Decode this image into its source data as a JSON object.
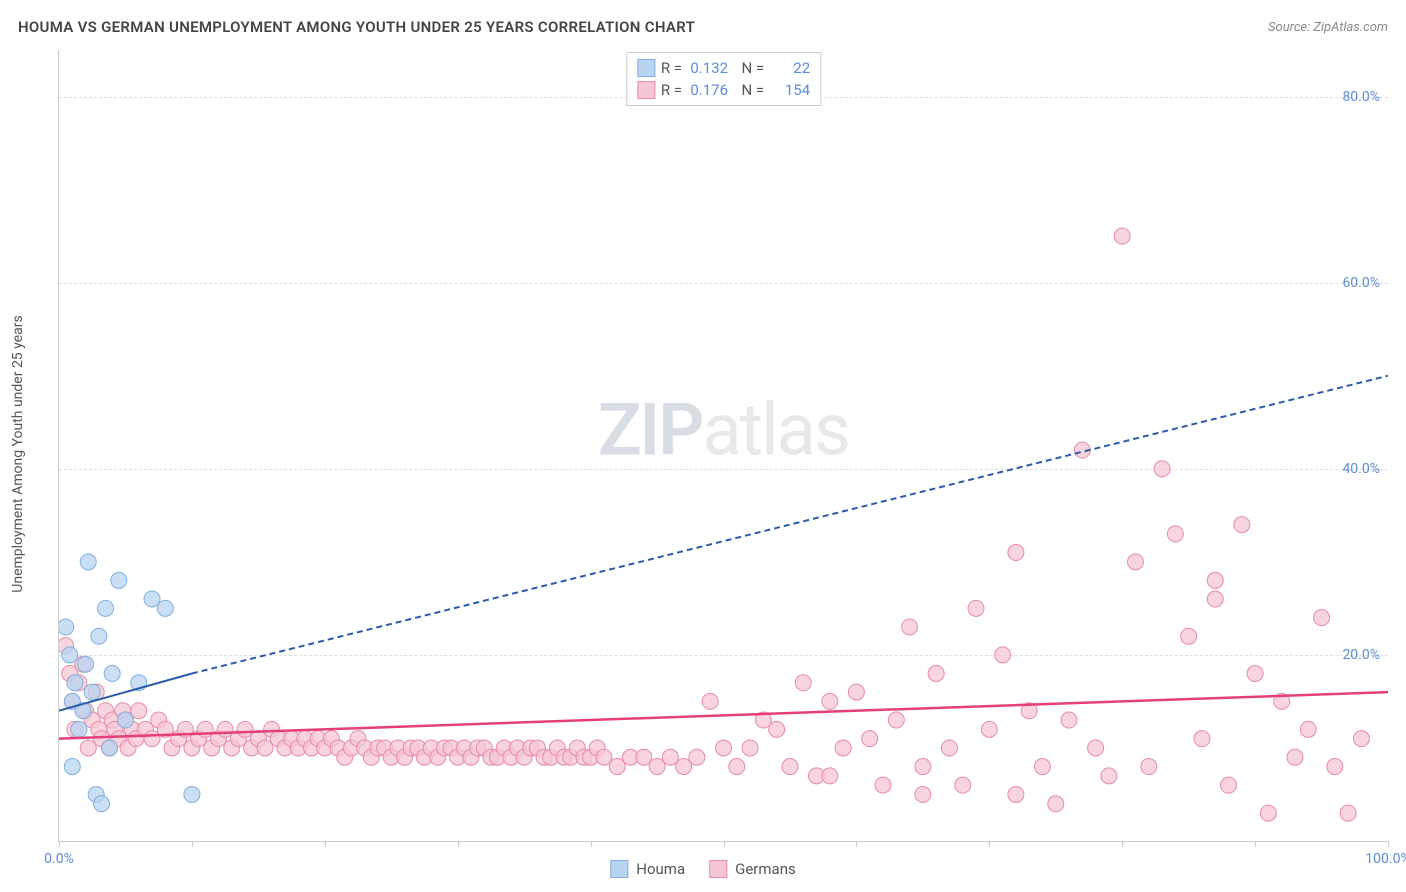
{
  "title": "HOUMA VS GERMAN UNEMPLOYMENT AMONG YOUTH UNDER 25 YEARS CORRELATION CHART",
  "source": "Source: ZipAtlas.com",
  "ylabel": "Unemployment Among Youth under 25 years",
  "watermark_zip": "ZIP",
  "watermark_atlas": "atlas",
  "chart": {
    "type": "scatter",
    "xlim": [
      0,
      100
    ],
    "ylim": [
      0,
      85
    ],
    "xtick_positions": [
      0,
      10,
      20,
      30,
      40,
      50,
      60,
      70,
      80,
      90,
      100
    ],
    "xtick_labels": {
      "0": "0.0%",
      "100": "100.0%"
    },
    "ytick_positions": [
      20,
      40,
      60,
      80
    ],
    "ytick_labels": [
      "20.0%",
      "40.0%",
      "60.0%",
      "80.0%"
    ],
    "grid_color": "#e0e0e0",
    "axis_color": "#cccccc",
    "background_color": "#ffffff",
    "tick_label_color": "#5b8dd6",
    "series": [
      {
        "name": "Houma",
        "color_fill": "#b8d4f0",
        "color_stroke": "#7fb0e0",
        "marker_radius": 8,
        "marker_opacity": 0.75,
        "r_value": "0.132",
        "n_value": "22",
        "trend": {
          "type": "dashed_then_solid",
          "solid_x": [
            0,
            10
          ],
          "solid_y": [
            14,
            18
          ],
          "dashed_x": [
            10,
            100
          ],
          "dashed_y": [
            18,
            50
          ],
          "color": "#2a5caa",
          "width": 2,
          "dash": "6,4"
        },
        "points": [
          [
            0.5,
            23
          ],
          [
            0.8,
            20
          ],
          [
            1.0,
            15
          ],
          [
            1.2,
            17
          ],
          [
            1.5,
            12
          ],
          [
            1.8,
            14
          ],
          [
            2.0,
            19
          ],
          [
            2.2,
            30
          ],
          [
            2.5,
            16
          ],
          [
            2.8,
            5
          ],
          [
            3.0,
            22
          ],
          [
            3.2,
            4
          ],
          [
            3.5,
            25
          ],
          [
            3.8,
            10
          ],
          [
            4.0,
            18
          ],
          [
            4.5,
            28
          ],
          [
            5.0,
            13
          ],
          [
            6.0,
            17
          ],
          [
            7.0,
            26
          ],
          [
            8.0,
            25
          ],
          [
            10.0,
            5
          ],
          [
            1.0,
            8
          ]
        ]
      },
      {
        "name": "Germans",
        "color_fill": "#f6c6d4",
        "color_stroke": "#e88aa8",
        "marker_radius": 8,
        "marker_opacity": 0.75,
        "r_value": "0.176",
        "n_value": "154",
        "trend": {
          "type": "solid",
          "x": [
            0,
            100
          ],
          "y": [
            11,
            16
          ],
          "color": "#e53e7b",
          "width": 2.5
        },
        "points": [
          [
            0.5,
            21
          ],
          [
            0.8,
            18
          ],
          [
            1,
            15
          ],
          [
            1.2,
            12
          ],
          [
            1.5,
            17
          ],
          [
            1.8,
            19
          ],
          [
            2,
            14
          ],
          [
            2.2,
            10
          ],
          [
            2.5,
            13
          ],
          [
            2.8,
            16
          ],
          [
            3,
            12
          ],
          [
            3.2,
            11
          ],
          [
            3.5,
            14
          ],
          [
            3.8,
            10
          ],
          [
            4,
            13
          ],
          [
            4.2,
            12
          ],
          [
            4.5,
            11
          ],
          [
            4.8,
            14
          ],
          [
            5,
            13
          ],
          [
            5.2,
            10
          ],
          [
            5.5,
            12
          ],
          [
            5.8,
            11
          ],
          [
            6,
            14
          ],
          [
            6.5,
            12
          ],
          [
            7,
            11
          ],
          [
            7.5,
            13
          ],
          [
            8,
            12
          ],
          [
            8.5,
            10
          ],
          [
            9,
            11
          ],
          [
            9.5,
            12
          ],
          [
            10,
            10
          ],
          [
            10.5,
            11
          ],
          [
            11,
            12
          ],
          [
            11.5,
            10
          ],
          [
            12,
            11
          ],
          [
            12.5,
            12
          ],
          [
            13,
            10
          ],
          [
            13.5,
            11
          ],
          [
            14,
            12
          ],
          [
            14.5,
            10
          ],
          [
            15,
            11
          ],
          [
            15.5,
            10
          ],
          [
            16,
            12
          ],
          [
            16.5,
            11
          ],
          [
            17,
            10
          ],
          [
            17.5,
            11
          ],
          [
            18,
            10
          ],
          [
            18.5,
            11
          ],
          [
            19,
            10
          ],
          [
            19.5,
            11
          ],
          [
            20,
            10
          ],
          [
            20.5,
            11
          ],
          [
            21,
            10
          ],
          [
            21.5,
            9
          ],
          [
            22,
            10
          ],
          [
            22.5,
            11
          ],
          [
            23,
            10
          ],
          [
            23.5,
            9
          ],
          [
            24,
            10
          ],
          [
            24.5,
            10
          ],
          [
            25,
            9
          ],
          [
            25.5,
            10
          ],
          [
            26,
            9
          ],
          [
            26.5,
            10
          ],
          [
            27,
            10
          ],
          [
            27.5,
            9
          ],
          [
            28,
            10
          ],
          [
            28.5,
            9
          ],
          [
            29,
            10
          ],
          [
            29.5,
            10
          ],
          [
            30,
            9
          ],
          [
            30.5,
            10
          ],
          [
            31,
            9
          ],
          [
            31.5,
            10
          ],
          [
            32,
            10
          ],
          [
            32.5,
            9
          ],
          [
            33,
            9
          ],
          [
            33.5,
            10
          ],
          [
            34,
            9
          ],
          [
            34.5,
            10
          ],
          [
            35,
            9
          ],
          [
            35.5,
            10
          ],
          [
            36,
            10
          ],
          [
            36.5,
            9
          ],
          [
            37,
            9
          ],
          [
            37.5,
            10
          ],
          [
            38,
            9
          ],
          [
            38.5,
            9
          ],
          [
            39,
            10
          ],
          [
            39.5,
            9
          ],
          [
            40,
            9
          ],
          [
            40.5,
            10
          ],
          [
            41,
            9
          ],
          [
            42,
            8
          ],
          [
            43,
            9
          ],
          [
            44,
            9
          ],
          [
            45,
            8
          ],
          [
            46,
            9
          ],
          [
            47,
            8
          ],
          [
            48,
            9
          ],
          [
            49,
            15
          ],
          [
            50,
            10
          ],
          [
            51,
            8
          ],
          [
            52,
            10
          ],
          [
            53,
            13
          ],
          [
            54,
            12
          ],
          [
            55,
            8
          ],
          [
            56,
            17
          ],
          [
            57,
            7
          ],
          [
            58,
            15
          ],
          [
            59,
            10
          ],
          [
            60,
            16
          ],
          [
            61,
            11
          ],
          [
            62,
            6
          ],
          [
            63,
            13
          ],
          [
            64,
            23
          ],
          [
            65,
            8
          ],
          [
            66,
            18
          ],
          [
            67,
            10
          ],
          [
            68,
            6
          ],
          [
            69,
            25
          ],
          [
            70,
            12
          ],
          [
            71,
            20
          ],
          [
            72,
            5
          ],
          [
            73,
            14
          ],
          [
            74,
            8
          ],
          [
            75,
            4
          ],
          [
            76,
            13
          ],
          [
            77,
            42
          ],
          [
            78,
            10
          ],
          [
            79,
            7
          ],
          [
            80,
            65
          ],
          [
            81,
            30
          ],
          [
            82,
            8
          ],
          [
            83,
            40
          ],
          [
            84,
            33
          ],
          [
            85,
            22
          ],
          [
            86,
            11
          ],
          [
            87,
            26
          ],
          [
            88,
            6
          ],
          [
            89,
            34
          ],
          [
            90,
            18
          ],
          [
            91,
            3
          ],
          [
            92,
            15
          ],
          [
            93,
            9
          ],
          [
            94,
            12
          ],
          [
            95,
            24
          ],
          [
            96,
            8
          ],
          [
            97,
            3
          ],
          [
            98,
            11
          ],
          [
            87,
            28
          ],
          [
            72,
            31
          ],
          [
            65,
            5
          ],
          [
            58,
            7
          ]
        ]
      }
    ]
  },
  "legend": {
    "items": [
      {
        "label": "Houma",
        "fill": "#b8d4f0",
        "stroke": "#7fb0e0"
      },
      {
        "label": "Germans",
        "fill": "#f6c6d4",
        "stroke": "#e88aa8"
      }
    ]
  }
}
